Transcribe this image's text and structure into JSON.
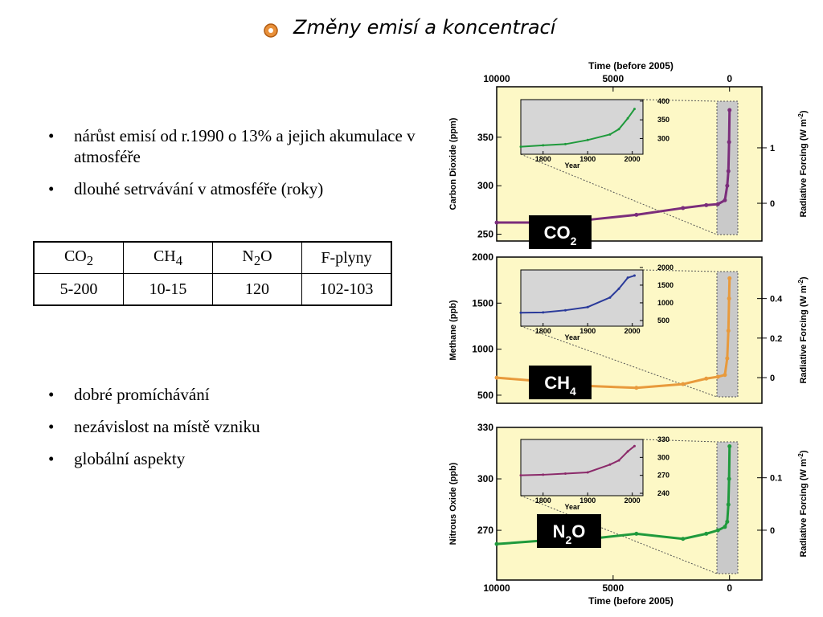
{
  "title": "Změny emisí a koncentrací",
  "bullets_top": [
    "nárůst emisí od r.1990 o 13% a jejich akumulace v atmosféře",
    "dlouhé setrvávání v atmosféře (roky)"
  ],
  "table": {
    "header": [
      [
        "CO",
        "2"
      ],
      [
        "CH",
        "4"
      ],
      [
        "N",
        "2",
        "O"
      ],
      [
        "F-plyny"
      ]
    ],
    "rows": [
      [
        "5-200",
        "10-15",
        "120",
        "102-103"
      ]
    ]
  },
  "bullets_bottom": [
    "dobré promíchávání",
    "nezávislost na místě vzniku",
    "globální aspekty"
  ],
  "chart_data": [
    {
      "type": "line",
      "xlabel": "Time (before 2005)",
      "xaxis_position": "top",
      "ylabel": "Carbon Dioxide (ppm)",
      "y2label": [
        "Radiative Forcing (W m",
        "-2",
        ")"
      ],
      "xlim": [
        10000,
        -1390
      ],
      "xticks": [
        10000,
        5000,
        0
      ],
      "ylim": [
        243,
        402
      ],
      "yticks": [
        250,
        300,
        350
      ],
      "y2lim": [
        -0.68,
        2.1
      ],
      "y2ticks": [
        0,
        1
      ],
      "badge": [
        "CO",
        "2"
      ],
      "x": [
        10000,
        8000,
        6000,
        4000,
        2000,
        1000,
        500,
        200,
        100,
        50,
        20,
        0
      ],
      "series": [
        {
          "color": "#7b2d7b",
          "values": [
            262,
            262,
            265,
            270,
            277,
            280,
            281,
            285,
            300,
            315,
            345,
            378
          ]
        }
      ],
      "inset": {
        "xlim": [
          1750,
          2024
        ],
        "xticks": [
          1800,
          1900,
          2000
        ],
        "xlabel": "Year",
        "ylim": [
          258,
          404
        ],
        "yticks": [
          300,
          350,
          400
        ],
        "x": [
          1750,
          1800,
          1850,
          1900,
          1950,
          1970,
          1990,
          2005
        ],
        "series": [
          {
            "color": "#1f9a3c",
            "values": [
              278,
              282,
              285,
              296,
              311,
              325,
              354,
              379
            ]
          }
        ]
      }
    },
    {
      "type": "line",
      "ylabel": "Methane (ppb)",
      "y2label": [
        "Radiative Forcing (W m",
        "-2",
        ")"
      ],
      "xlim": [
        10000,
        -1390
      ],
      "ylim": [
        412,
        2000
      ],
      "yticks": [
        500,
        1000,
        1500,
        2000
      ],
      "y2lim": [
        -0.13,
        0.61
      ],
      "y2ticks": [
        0,
        0.2,
        0.4
      ],
      "badge": [
        "CH",
        "4"
      ],
      "x": [
        10000,
        8000,
        6000,
        4000,
        2000,
        1000,
        500,
        200,
        100,
        50,
        20,
        0
      ],
      "series": [
        {
          "color": "#e89a3c",
          "values": [
            690,
            650,
            600,
            580,
            620,
            680,
            700,
            720,
            900,
            1200,
            1550,
            1770
          ]
        }
      ],
      "inset": {
        "xlim": [
          1750,
          2024
        ],
        "xticks": [
          1800,
          1900,
          2000
        ],
        "xlabel": "Year",
        "ylim": [
          340,
          1930
        ],
        "yticks": [
          500,
          1000,
          1500,
          2000
        ],
        "x": [
          1750,
          1800,
          1850,
          1900,
          1950,
          1970,
          1990,
          2005
        ],
        "series": [
          {
            "color": "#2a3a9a",
            "values": [
              720,
              730,
              790,
              880,
              1150,
              1400,
              1710,
              1770
            ]
          }
        ]
      }
    },
    {
      "type": "line",
      "xlabel": "Time (before 2005)",
      "xaxis_position": "bottom",
      "ylabel": "Nitrous Oxide (ppb)",
      "y2label": [
        "Radiative Forcing (W m",
        "-2",
        ")"
      ],
      "xlim": [
        10000,
        -1390
      ],
      "xticks": [
        10000,
        5000,
        0
      ],
      "ylim": [
        241,
        330
      ],
      "yticks": [
        270,
        300,
        330
      ],
      "y2lim": [
        -0.095,
        0.196
      ],
      "y2ticks": [
        0,
        0.1
      ],
      "badge": [
        "N",
        "2",
        "O"
      ],
      "x": [
        10000,
        8000,
        6000,
        4000,
        2000,
        1000,
        500,
        200,
        100,
        50,
        20,
        0
      ],
      "series": [
        {
          "color": "#1f9a3c",
          "values": [
            262,
            264,
            265,
            268,
            265,
            268,
            270,
            272,
            275,
            285,
            300,
            319
          ]
        }
      ],
      "inset": {
        "xlim": [
          1750,
          2024
        ],
        "xticks": [
          1800,
          1900,
          2000
        ],
        "xlabel": "Year",
        "ylim": [
          236,
          330
        ],
        "yticks": [
          240,
          270,
          300,
          330
        ],
        "x": [
          1750,
          1800,
          1850,
          1900,
          1950,
          1970,
          1990,
          2005
        ],
        "series": [
          {
            "color": "#8b2a6a",
            "values": [
              270,
              271,
              273,
              275,
              288,
              295,
              310,
              319
            ]
          }
        ]
      }
    }
  ]
}
